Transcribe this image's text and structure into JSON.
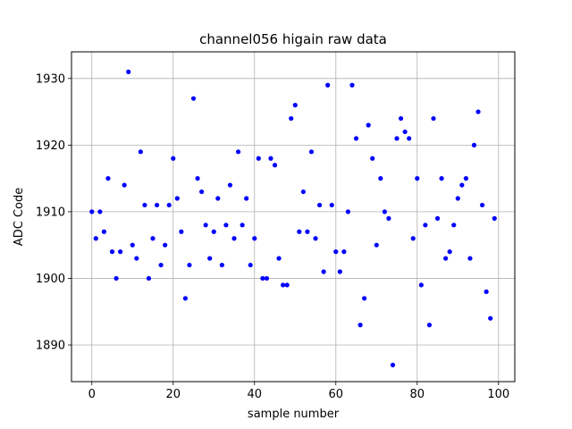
{
  "chart_data": {
    "type": "scatter",
    "title": "channel056 higain raw data",
    "xlabel": "sample number",
    "ylabel": "ADC Code",
    "xlim": [
      -5,
      104
    ],
    "ylim": [
      1884.5,
      1934
    ],
    "xticks": [
      0,
      20,
      40,
      60,
      80,
      100
    ],
    "yticks": [
      1890,
      1900,
      1910,
      1920,
      1930
    ],
    "grid": true,
    "marker_color": "#0000ff",
    "x": [
      0,
      1,
      2,
      3,
      4,
      5,
      6,
      7,
      8,
      9,
      10,
      11,
      12,
      13,
      14,
      15,
      16,
      17,
      18,
      19,
      20,
      21,
      22,
      23,
      24,
      25,
      26,
      27,
      28,
      29,
      30,
      31,
      32,
      33,
      34,
      35,
      36,
      37,
      38,
      39,
      40,
      41,
      42,
      43,
      44,
      45,
      46,
      47,
      48,
      49,
      50,
      51,
      52,
      53,
      54,
      55,
      56,
      57,
      58,
      59,
      60,
      61,
      62,
      63,
      64,
      65,
      66,
      67,
      68,
      69,
      70,
      71,
      72,
      73,
      74,
      75,
      76,
      77,
      78,
      79,
      80,
      81,
      82,
      83,
      84,
      85,
      86,
      87,
      88,
      89,
      90,
      91,
      92,
      93,
      94,
      95,
      96,
      97,
      98,
      99
    ],
    "y": [
      1910,
      1906,
      1910,
      1907,
      1915,
      1904,
      1900,
      1904,
      1914,
      1931,
      1905,
      1903,
      1919,
      1911,
      1900,
      1906,
      1911,
      1902,
      1905,
      1911,
      1918,
      1912,
      1907,
      1897,
      1902,
      1927,
      1915,
      1913,
      1908,
      1903,
      1907,
      1912,
      1902,
      1908,
      1914,
      1906,
      1919,
      1908,
      1912,
      1902,
      1906,
      1918,
      1900,
      1900,
      1918,
      1917,
      1903,
      1899,
      1899,
      1924,
      1926,
      1907,
      1913,
      1907,
      1919,
      1906,
      1911,
      1901,
      1929,
      1911,
      1904,
      1901,
      1904,
      1910,
      1929,
      1921,
      1893,
      1897,
      1923,
      1918,
      1905,
      1915,
      1910,
      1909,
      1887,
      1921,
      1924,
      1922,
      1921,
      1906,
      1915,
      1899,
      1908,
      1893,
      1924,
      1909,
      1915,
      1903,
      1904,
      1908,
      1912,
      1914,
      1915,
      1903,
      1920,
      1925,
      1911,
      1898,
      1894,
      1909
    ]
  }
}
